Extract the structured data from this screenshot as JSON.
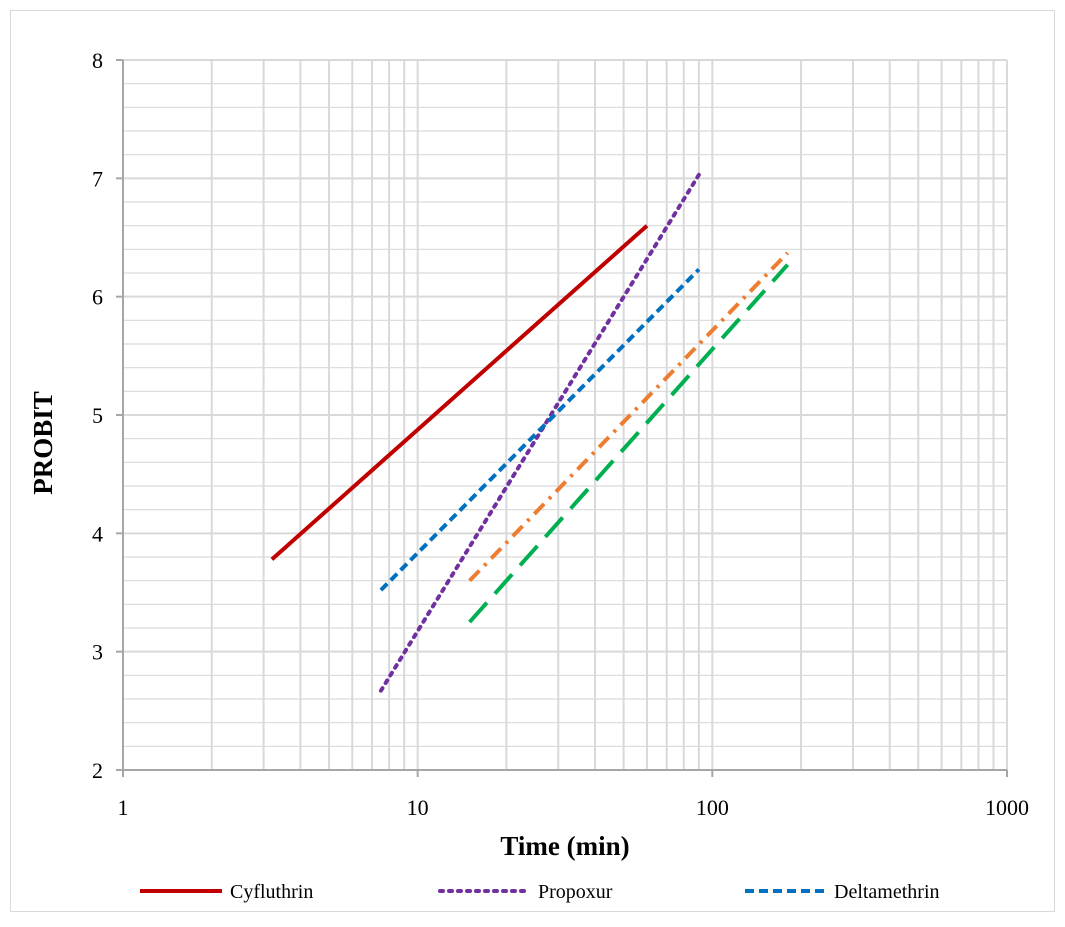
{
  "chart_data": {
    "type": "line",
    "title": "",
    "xlabel": "Time (min)",
    "ylabel": "PROBIT",
    "x_scale": "log",
    "xlim": [
      1,
      1000
    ],
    "ylim": [
      2,
      8
    ],
    "x_ticks": [
      "1",
      "10",
      "100",
      "1000"
    ],
    "y_ticks": [
      "2",
      "3",
      "4",
      "5",
      "6",
      "7",
      "8"
    ],
    "grid": true,
    "legend_position": "bottom",
    "series": [
      {
        "name": "Cyfluthrin",
        "color": "#C00000",
        "dash": "solid",
        "x": [
          3.2,
          60
        ],
        "y": [
          3.78,
          6.6
        ]
      },
      {
        "name": "Propoxur",
        "color": "#7030A0",
        "dash": "dot",
        "x": [
          7.5,
          90
        ],
        "y": [
          2.67,
          7.03
        ]
      },
      {
        "name": "Deltamethrin",
        "color": "#0070C0",
        "dash": "dash",
        "x": [
          7.5,
          90
        ],
        "y": [
          3.52,
          6.23
        ]
      },
      {
        "name": "",
        "color": "#ED7D31",
        "dash": "dashdot",
        "x": [
          15,
          180
        ],
        "y": [
          3.6,
          6.37
        ]
      },
      {
        "name": "",
        "color": "#00B050",
        "dash": "longdash",
        "x": [
          15,
          180
        ],
        "y": [
          3.25,
          6.27
        ]
      }
    ]
  }
}
